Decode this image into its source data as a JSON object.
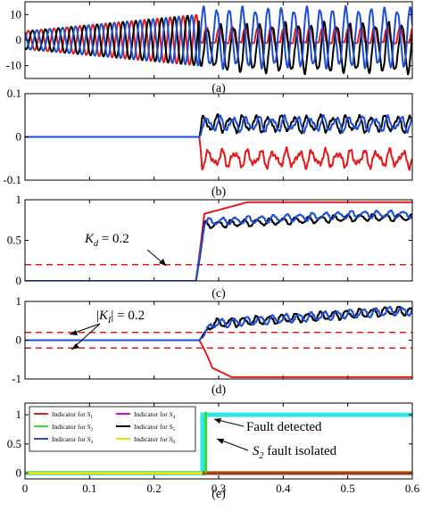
{
  "figure": {
    "panels": [
      {
        "key": "a",
        "caption": "(a)",
        "yticks": [
          {
            "v": 10,
            "t": "10"
          },
          {
            "v": 0,
            "t": "0"
          },
          {
            "v": -10,
            "t": "-10"
          }
        ],
        "ylim": [
          -15,
          15
        ]
      },
      {
        "key": "b",
        "caption": "(b)",
        "yticks": [
          {
            "v": 0.1,
            "t": "0.1"
          },
          {
            "v": 0,
            "t": "0"
          },
          {
            "v": -0.1,
            "t": "-0.1"
          }
        ],
        "ylim": [
          -0.1,
          0.1
        ]
      },
      {
        "key": "c",
        "caption": "(c)",
        "yticks": [
          {
            "v": 1,
            "t": "1"
          },
          {
            "v": 0.5,
            "t": "0.5"
          },
          {
            "v": 0,
            "t": "0"
          }
        ],
        "ylim": [
          0,
          1
        ]
      },
      {
        "key": "d",
        "caption": "(d)",
        "yticks": [
          {
            "v": 1,
            "t": "1"
          },
          {
            "v": 0,
            "t": "0"
          },
          {
            "v": -1,
            "t": "-1"
          }
        ],
        "ylim": [
          -1,
          1
        ]
      },
      {
        "key": "e",
        "caption": "(e)",
        "yticks": [
          {
            "v": 1,
            "t": "1"
          },
          {
            "v": 0.5,
            "t": "0.5"
          },
          {
            "v": 0,
            "t": "0"
          }
        ],
        "ylim": [
          -0.1,
          1.2
        ]
      }
    ],
    "xticks": [
      {
        "v": 0,
        "t": "0"
      },
      {
        "v": 0.1,
        "t": "0.1"
      },
      {
        "v": 0.2,
        "t": "0.2"
      },
      {
        "v": 0.3,
        "t": "0.3"
      },
      {
        "v": 0.4,
        "t": "0.4"
      },
      {
        "v": 0.5,
        "t": "0.5"
      },
      {
        "v": 0.6,
        "t": "0.6"
      }
    ]
  },
  "annotations": {
    "kd": {
      "var": "K",
      "sub": "d",
      "rest": " = 0.2"
    },
    "ki": {
      "var": "K",
      "sub": "I",
      "rest": " = 0.2"
    },
    "fault_detected": "Fault detected",
    "fault_isolated": {
      "var": "S",
      "sub": "2",
      "rest": "  fault isolated"
    }
  },
  "legend": [
    {
      "prefix": "Indicator for ",
      "var": "S",
      "sub": "1",
      "color": "#e41a1c"
    },
    {
      "prefix": "Indicator for ",
      "var": "S",
      "sub": "4",
      "color": "#e000e0"
    },
    {
      "prefix": "Indicator for ",
      "var": "S",
      "sub": "2",
      "color": "#33dd33"
    },
    {
      "prefix": "Indicator for ",
      "var": "S",
      "sub": "5",
      "color": "#000000"
    },
    {
      "prefix": "Indicator for ",
      "var": "S",
      "sub": "3",
      "color": "#1c4fd6"
    },
    {
      "prefix": "Indicator for ",
      "var": "S",
      "sub": "6",
      "color": "#f0e000"
    }
  ],
  "colors": {
    "red": "#e41a1c",
    "blue": "#1c4fd6",
    "black": "#000000",
    "cyan": "#33e6e6",
    "green": "#33dd33",
    "yellow": "#f0e000",
    "magenta": "#e000e0"
  },
  "chart_data": {
    "type": "line",
    "x_range": [
      0,
      0.6
    ],
    "fault_time": 0.27,
    "panels": [
      {
        "caption": "(a)",
        "ylim": [
          -15,
          15
        ],
        "series": [
          {
            "color": "red",
            "desc": "3-phase sine, amplitude ~4, grows to ~10 before fault; after fault clipped near 0 to 5"
          },
          {
            "color": "black",
            "desc": "phase grows to ~10, after fault swings to ~-13"
          },
          {
            "color": "blue",
            "desc": "phase grows to ~10, after fault swings ~-10 to 12"
          }
        ]
      },
      {
        "caption": "(b)",
        "ylim": [
          -0.1,
          0.1
        ],
        "series": [
          {
            "color": "blue",
            "value_before_fault": 0,
            "after_fault_range": [
              0.01,
              0.05
            ]
          },
          {
            "color": "black",
            "value_before_fault": 0,
            "after_fault_range": [
              0.01,
              0.05
            ]
          },
          {
            "color": "red",
            "value_before_fault": 0,
            "after_fault_range": [
              -0.07,
              -0.03
            ]
          }
        ]
      },
      {
        "caption": "(c)",
        "ylim": [
          0,
          1
        ],
        "threshold": 0.2,
        "series": [
          {
            "color": "red",
            "value_before_fault": 0,
            "after_fault_level": 0.97
          },
          {
            "color": "blue",
            "value_before_fault": 0,
            "after_fault_level": 0.82
          },
          {
            "color": "black",
            "value_before_fault": 0,
            "after_fault_level": 0.78
          }
        ]
      },
      {
        "caption": "(d)",
        "ylim": [
          -1,
          1
        ],
        "thresholds": [
          0.2,
          -0.2
        ],
        "series": [
          {
            "color": "blue",
            "value_before_fault": 0,
            "after_fault_level": 0.75
          },
          {
            "color": "black",
            "value_before_fault": 0,
            "after_fault_level": 0.72
          },
          {
            "color": "red",
            "value_before_fault": 0,
            "after_fault_level": -0.95
          }
        ]
      },
      {
        "caption": "(e)",
        "ylim": [
          -0.1,
          1.2
        ],
        "series": [
          {
            "name": "Indicator for S1",
            "color": "red",
            "value_before": 0,
            "value_after": 0
          },
          {
            "name": "Indicator for S2",
            "color": "green",
            "value_before": 0,
            "value_after": 1,
            "switch_time": 0.28
          },
          {
            "name": "Indicator for S3",
            "color": "blue",
            "value_before": 0,
            "value_after": 0
          },
          {
            "name": "Indicator for S4",
            "color": "magenta",
            "value_before": 0,
            "value_after": 0
          },
          {
            "name": "Indicator for S5",
            "color": "black",
            "value_before": 0,
            "value_after": 0
          },
          {
            "name": "Indicator for S6",
            "color": "yellow",
            "value_before": 0,
            "value_after": 0
          },
          {
            "name": "cyan envelope",
            "color": "cyan",
            "value_before": 0,
            "value_after": 1,
            "switch_time": 0.275
          }
        ]
      }
    ]
  }
}
